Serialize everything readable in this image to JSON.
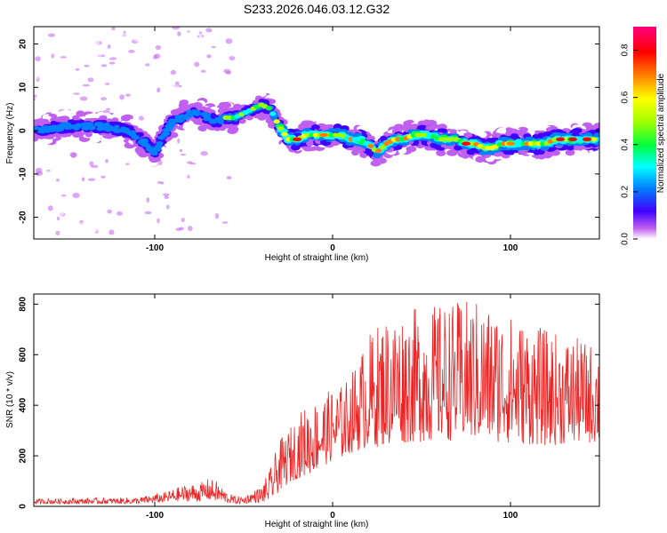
{
  "figure": {
    "title": "S233.2026.046.03.12.G32"
  },
  "chart_data": [
    {
      "type": "heatmap",
      "title": "S233.2026.046.03.12.G32",
      "xlabel": "Height of straight line (km)",
      "ylabel": "Frequency (Hz)",
      "xlim": [
        -168,
        150
      ],
      "ylim": [
        -25,
        24
      ],
      "xticks": [
        -100,
        0,
        100
      ],
      "yticks": [
        -20,
        -10,
        0,
        10,
        20
      ],
      "colorbar": {
        "label": "Normalized spectral amplitude",
        "range": [
          0,
          0.9
        ],
        "ticks": [
          0.0,
          0.2,
          0.4,
          0.6,
          0.8
        ],
        "colors": [
          "#ffffff",
          "#c060f0",
          "#4000ff",
          "#0080ff",
          "#00ffff",
          "#00ff40",
          "#a0ff00",
          "#ffff00",
          "#ff8000",
          "#ff0000",
          "#ff0080"
        ]
      },
      "ridge": {
        "x": [
          -168,
          -150,
          -130,
          -115,
          -105,
          -100,
          -95,
          -90,
          -85,
          -80,
          -75,
          -70,
          -65,
          -60,
          -55,
          -50,
          -45,
          -40,
          -35,
          -30,
          -25,
          -20,
          -15,
          -10,
          -5,
          0,
          5,
          10,
          15,
          20,
          25,
          30,
          35,
          40,
          45,
          50,
          55,
          60,
          65,
          70,
          75,
          80,
          85,
          90,
          95,
          100,
          105,
          110,
          115,
          120,
          125,
          130,
          135,
          140,
          145,
          150
        ],
        "y": [
          0,
          1,
          1,
          0,
          -3,
          -5,
          -1,
          2,
          3,
          4,
          4,
          3,
          2,
          3,
          3,
          4,
          5,
          6,
          5,
          1,
          -2,
          -2,
          -1,
          -1,
          -1,
          -1,
          -1,
          -2,
          -2,
          -3,
          -5,
          -3,
          -2,
          -2,
          -1,
          -1,
          -1,
          -2,
          -2,
          -2,
          -3,
          -3,
          -4,
          -4,
          -3,
          -3,
          -3,
          -3,
          -3,
          -3,
          -2,
          -2,
          -2,
          -2,
          -2,
          -2
        ]
      }
    },
    {
      "type": "line",
      "xlabel": "Height of straight line (km)",
      "ylabel": "SNR (10 * v/v)",
      "xlim": [
        -168,
        150
      ],
      "ylim": [
        0,
        840
      ],
      "xticks": [
        -100,
        0,
        100
      ],
      "yticks": [
        0,
        200,
        400,
        600,
        800
      ],
      "color": "#ee2222",
      "envelope": {
        "x": [
          -168,
          -110,
          -95,
          -85,
          -80,
          -75,
          -70,
          -65,
          -60,
          -55,
          -50,
          -45,
          -40,
          -35,
          -30,
          -25,
          -20,
          -15,
          -10,
          -5,
          0,
          5,
          10,
          15,
          20,
          30,
          40,
          60,
          80,
          100,
          120,
          140,
          150
        ],
        "low": [
          10,
          10,
          15,
          20,
          20,
          20,
          25,
          20,
          15,
          10,
          10,
          15,
          15,
          20,
          60,
          90,
          110,
          120,
          140,
          160,
          180,
          190,
          210,
          220,
          230,
          240,
          250,
          260,
          260,
          250,
          240,
          250,
          250
        ],
        "high": [
          30,
          35,
          55,
          80,
          90,
          90,
          110,
          100,
          60,
          40,
          40,
          60,
          80,
          150,
          260,
          300,
          360,
          400,
          420,
          440,
          470,
          480,
          520,
          600,
          680,
          760,
          780,
          800,
          820,
          760,
          700,
          660,
          640
        ]
      }
    }
  ]
}
